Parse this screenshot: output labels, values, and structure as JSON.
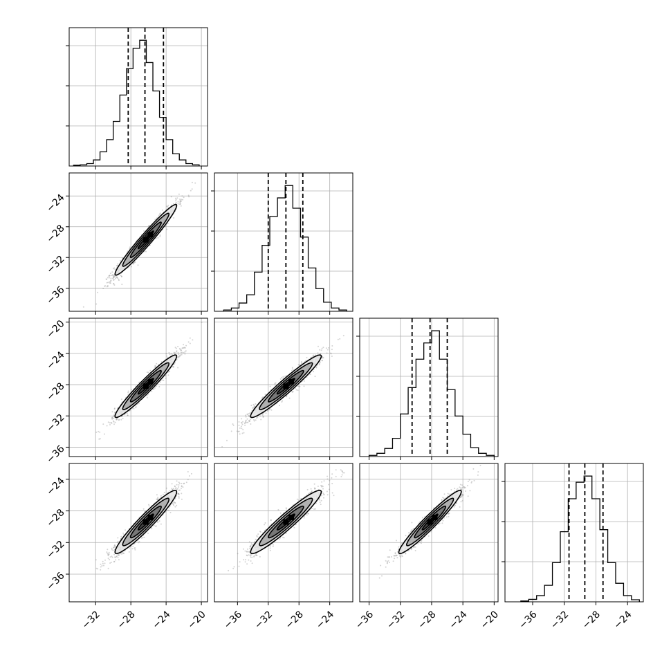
{
  "figure": {
    "type": "corner",
    "background": "#ffffff",
    "ink_color": "#000000",
    "grid_color": "#b0b0b0",
    "scatter_color": "#808080"
  },
  "chart_data": {
    "type": "corner",
    "parameters": [
      {
        "range": [
          -35,
          -19.3
        ],
        "mean": -26.3,
        "sd": 1.75,
        "q16": -28.3,
        "q50": -26.4,
        "q84": -24.3,
        "ticks": [
          -32,
          -28,
          -24,
          -20
        ]
      },
      {
        "range": [
          -39,
          -21
        ],
        "mean": -29.7,
        "sd": 2.3,
        "q16": -32.0,
        "q50": -29.7,
        "q84": -27.5,
        "ticks": [
          -36,
          -32,
          -28,
          -24
        ]
      },
      {
        "range": [
          -37.2,
          -19.5
        ],
        "mean": -28.2,
        "sd": 2.0,
        "q16": -30.5,
        "q50": -28.2,
        "q84": -26.0,
        "ticks": [
          -36,
          -32,
          -28,
          -24,
          -20
        ]
      },
      {
        "range": [
          -39.5,
          -22
        ],
        "mean": -29.4,
        "sd": 2.0,
        "q16": -31.4,
        "q50": -29.4,
        "q84": -27.1,
        "ticks": [
          -36,
          -32,
          -28,
          -24
        ]
      }
    ],
    "histograms": [
      {
        "bin_start": -34.5,
        "bin_width": 0.75,
        "counts": [
          2,
          3,
          6,
          15,
          35,
          65,
          110,
          175,
          240,
          290,
          310,
          255,
          185,
          120,
          65,
          30,
          15,
          6,
          3
        ]
      },
      {
        "bin_start": -37.8,
        "bin_width": 1.0,
        "counts": [
          3,
          8,
          20,
          40,
          95,
          160,
          230,
          275,
          305,
          250,
          180,
          105,
          55,
          22,
          8,
          3
        ]
      },
      {
        "bin_start": -36.0,
        "bin_width": 1.0,
        "counts": [
          3,
          8,
          20,
          45,
          105,
          170,
          240,
          280,
          310,
          240,
          165,
          100,
          55,
          22,
          8,
          3
        ]
      },
      {
        "bin_start": -37.5,
        "bin_width": 1.0,
        "counts": [
          2,
          6,
          15,
          40,
          95,
          170,
          250,
          290,
          305,
          250,
          175,
          95,
          45,
          15,
          5
        ]
      }
    ],
    "correlations": [
      [
        1.0,
        0.97,
        0.96,
        0.95
      ],
      [
        0.97,
        1.0,
        0.96,
        0.95
      ],
      [
        0.96,
        0.96,
        1.0,
        0.96
      ],
      [
        0.95,
        0.95,
        0.96,
        1.0
      ]
    ],
    "contour_levels_sigma": [
      0.5,
      1.0,
      1.5,
      2.0
    ],
    "samples_per_panel": 1400,
    "quantiles_shown": [
      0.16,
      0.5,
      0.84
    ],
    "grid": true
  }
}
